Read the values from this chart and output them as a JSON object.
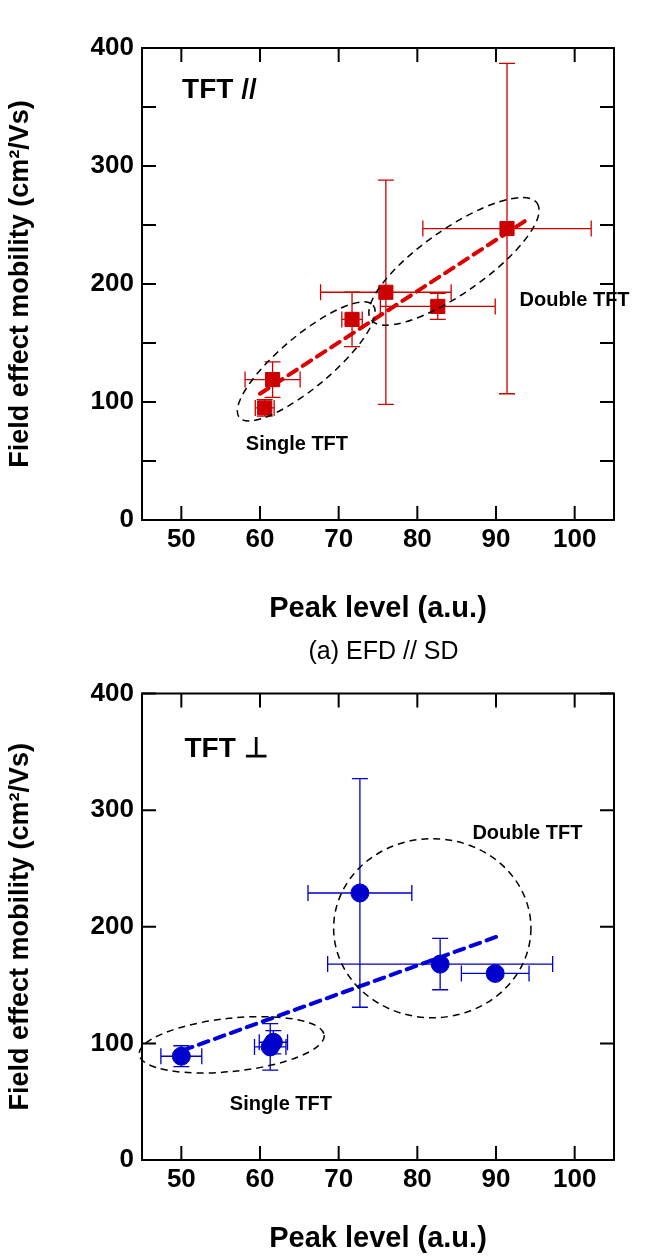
{
  "chart_data": [
    {
      "type": "scatter",
      "xlabel": "Peak level (a.u.)",
      "ylabel": "Field effect mobility (cm²/Vs)",
      "xlim": [
        45,
        105
      ],
      "xticks": [
        50,
        60,
        70,
        80,
        90,
        100
      ],
      "ylim": [
        0,
        400
      ],
      "yticks": [
        0,
        {
          "value": 50,
          "label": null
        },
        100,
        {
          "value": 150,
          "label": null
        },
        200,
        {
          "value": 250,
          "label": null
        },
        300,
        {
          "value": 350,
          "label": null
        },
        400
      ],
      "grid": false,
      "legend": false,
      "annotations": [
        "TFT //",
        "Single TFT",
        "Double TFT",
        "(a) EFD // SD"
      ],
      "series": [
        {
          "color": "#cc0000",
          "marker": "square",
          "x": [
            60.6,
            61.6,
            71.7,
            76.0,
            82.6,
            91.4
          ],
          "values": [
            95,
            119,
            170,
            193,
            181,
            247
          ],
          "errors": [
            7,
            15,
            23,
            95,
            11,
            140
          ],
          "xerrors": [
            1.2,
            3.5,
            1.3,
            8.3,
            7.3,
            10.7
          ]
        },
        {
          "type": "line",
          "color": "#dd0000",
          "marker": "none",
          "line_style": "dashed",
          "x": [
            60,
            94.3
          ],
          "values": [
            107,
            256
          ]
        }
      ]
    },
    {
      "type": "scatter",
      "xlabel": "Peak level (a.u.)",
      "ylabel": "Field effect mobility (cm²/Vs)",
      "xlim": [
        45,
        105
      ],
      "xticks": [
        50,
        60,
        70,
        80,
        90,
        100
      ],
      "ylim": [
        0,
        400
      ],
      "yticks": [
        0,
        100,
        200,
        300,
        400
      ],
      "grid": false,
      "legend": false,
      "annotations": [
        "TFT ⊥",
        "Single TFT",
        "Double TFT"
      ],
      "series": [
        {
          "color": "#0000cc",
          "marker": "circle",
          "x": [
            50.0,
            61.3,
            61.7,
            72.7,
            82.9,
            89.9
          ],
          "values": [
            89,
            97,
            101,
            229,
            168,
            160
          ],
          "errors": [
            9,
            20,
            10,
            98,
            22,
            4
          ],
          "xerrors": [
            2.6,
            2,
            1.8,
            6.6,
            14.3,
            4.3
          ]
        },
        {
          "type": "line",
          "color": "#0000dd",
          "marker": "none",
          "line_style": "dashed",
          "x": [
            50.2,
            90.3
          ],
          "values": [
            94,
            192
          ]
        }
      ]
    }
  ]
}
